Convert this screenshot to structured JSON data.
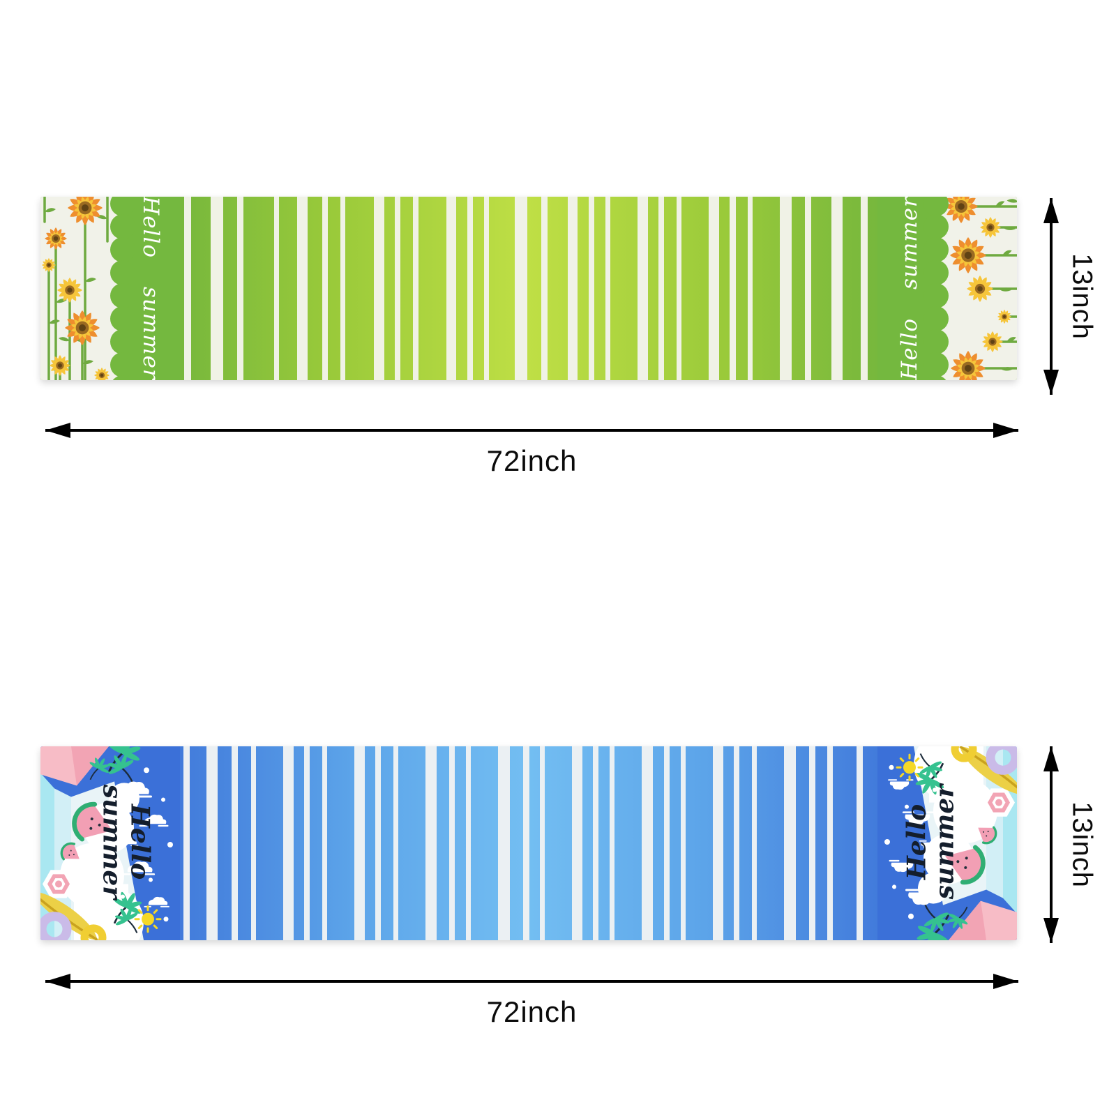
{
  "image": {
    "type": "product-dimension-diagram",
    "background": "#ffffff",
    "arrow_color": "#000000",
    "label_color": "#0b0b0b"
  },
  "runners": [
    {
      "name": "hello-summer-sunflower-table-runner-green",
      "hello_text": "Hello summer",
      "width_label": "72inch",
      "height_label": "13inch",
      "motifs": [
        "sunflower-icon",
        "leaf-icon",
        "scallop-border",
        "fabric-stripes"
      ],
      "colors": {
        "end_bg": "#f1f2e9",
        "band": "#74b83f",
        "stem": "#6faa40",
        "flower_orange": "#ee8e2e",
        "flower_yellow": "#f6c53a",
        "flower_center": "#9a6a22",
        "flower_center_dark": "#5f4214",
        "stripe": "#f0f2e6",
        "gradient": [
          [
            0,
            "#6db23c"
          ],
          [
            13,
            "#74b63d"
          ],
          [
            30,
            "#9aca3a"
          ],
          [
            50,
            "#bfdf45"
          ],
          [
            70,
            "#9aca3a"
          ],
          [
            87,
            "#74b63d"
          ],
          [
            100,
            "#6db23c"
          ]
        ]
      },
      "stripes": [
        [
          0.6,
          10
        ],
        [
          4.4,
          18
        ],
        [
          8.2,
          9
        ],
        [
          13.5,
          7
        ],
        [
          16.8,
          15
        ],
        [
          20.4,
          8
        ],
        [
          23.0,
          7
        ],
        [
          27.8,
          15
        ],
        [
          30.8,
          8
        ],
        [
          33.4,
          8
        ],
        [
          38.2,
          14
        ],
        [
          41.2,
          8
        ],
        [
          43.6,
          7
        ],
        [
          48.0,
          18
        ],
        [
          51.8,
          9
        ],
        [
          55.6,
          14
        ],
        [
          58.6,
          8
        ],
        [
          61.0,
          7
        ],
        [
          65.6,
          15
        ],
        [
          68.6,
          8
        ],
        [
          71.2,
          7
        ],
        [
          75.8,
          15
        ],
        [
          78.8,
          9
        ],
        [
          81.4,
          7
        ],
        [
          86.0,
          17
        ],
        [
          89.6,
          9
        ],
        [
          93.4,
          16
        ],
        [
          97.6,
          10
        ]
      ]
    },
    {
      "name": "hello-summer-beach-table-runner-blue",
      "hello_line1": "Hello",
      "hello_line2": "summer",
      "width_label": "72inch",
      "height_label": "13inch",
      "motifs": [
        "palm-tree-icon",
        "watermelon-icon",
        "sun-icon",
        "cloud-icon",
        "beach-umbrella-icon",
        "surfboard-icon",
        "swim-ring-icon",
        "fabric-stripes"
      ],
      "colors": {
        "end_bg": "#3b70d8",
        "cyan": "#a9e7f1",
        "pale_cyan": "#d2eff6",
        "iceberg": "#e9f4f7",
        "pink": "#f7bcc6",
        "pink_deep": "#f2a4b4",
        "palm": "#35c28f",
        "trunk": "#1c2b3a",
        "melon": "#f29fb4",
        "rind": "#2fae73",
        "sun": "#f5d827",
        "board": "#ecd046",
        "board_edge": "#c9a21e",
        "ring_lavender": "#cabbe8",
        "ring_yellow": "#f0ce33",
        "stripe": "#ebf0f3",
        "gradient": [
          [
            0,
            "#3b70d8"
          ],
          [
            13,
            "#4078da"
          ],
          [
            32,
            "#5ca4e9"
          ],
          [
            50,
            "#73bef2"
          ],
          [
            68,
            "#5ca4e9"
          ],
          [
            87,
            "#4078da"
          ],
          [
            100,
            "#3b70d8"
          ]
        ]
      },
      "stripes": [
        [
          0.5,
          9
        ],
        [
          3.8,
          16
        ],
        [
          7.4,
          9
        ],
        [
          10.2,
          7
        ],
        [
          14.8,
          15
        ],
        [
          17.8,
          8
        ],
        [
          20.4,
          7
        ],
        [
          25.0,
          15
        ],
        [
          28.0,
          8
        ],
        [
          30.6,
          7
        ],
        [
          35.2,
          16
        ],
        [
          38.6,
          8
        ],
        [
          41.0,
          7
        ],
        [
          45.6,
          17
        ],
        [
          49.2,
          9
        ],
        [
          51.6,
          7
        ],
        [
          56.2,
          15
        ],
        [
          59.2,
          8
        ],
        [
          61.6,
          7
        ],
        [
          66.2,
          16
        ],
        [
          69.4,
          8
        ],
        [
          71.8,
          7
        ],
        [
          76.4,
          15
        ],
        [
          79.4,
          8
        ],
        [
          82.0,
          7
        ],
        [
          86.6,
          17
        ],
        [
          90.2,
          9
        ],
        [
          92.8,
          8
        ],
        [
          97.0,
          9
        ]
      ]
    }
  ]
}
